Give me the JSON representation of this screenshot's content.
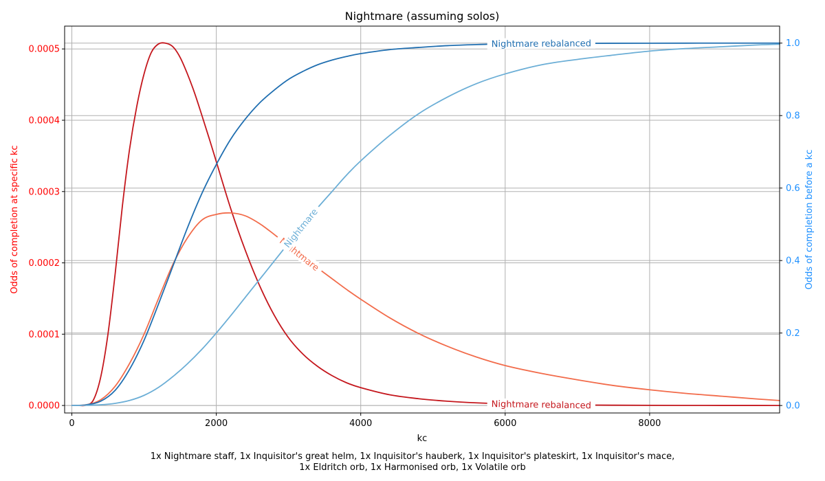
{
  "chart_data": {
    "type": "line",
    "title": "Nightmare (assuming solos)",
    "xlabel": "kc",
    "ylabel_left": "Odds of completion at specific kc",
    "ylabel_right": "Odds of completion before a kc",
    "xlim": [
      -100,
      9800
    ],
    "ylim_left": [
      -1.05e-05,
      0.000532
    ],
    "ylim_right": [
      -0.0206,
      1.0469
    ],
    "x_ticks": [
      0,
      2000,
      4000,
      6000,
      8000
    ],
    "y_ticks_left": [
      0.0,
      0.0001,
      0.0002,
      0.0003,
      0.0004,
      0.0005
    ],
    "y_ticks_left_labels": [
      "0.0000",
      "0.0001",
      "0.0002",
      "0.0003",
      "0.0004",
      "0.0005"
    ],
    "y_ticks_right": [
      0.0,
      0.2,
      0.4,
      0.6,
      0.8,
      1.0
    ],
    "y_ticks_right_labels": [
      "0.0",
      "0.2",
      "0.4",
      "0.6",
      "0.8",
      "1.0"
    ],
    "grid": true,
    "colors": {
      "left_axis": "#ff0000",
      "right_axis": "#1e90ff",
      "nightmare_rebalanced": "#c4161c",
      "nightmare": "#f26b4a",
      "cdf_rebalanced": "#1f6eb0",
      "cdf_nightmare": "#6baed6",
      "grid": "#b0b0b0"
    },
    "series": [
      {
        "name": "Nightmare rebalanced",
        "axis": "left",
        "color": "#c4161c",
        "x": [
          0,
          100,
          200,
          300,
          400,
          500,
          600,
          700,
          800,
          900,
          1000,
          1100,
          1200,
          1300,
          1400,
          1500,
          1600,
          1700,
          1800,
          1900,
          2000,
          2200,
          2400,
          2600,
          2800,
          3000,
          3200,
          3400,
          3600,
          3800,
          4000,
          4400,
          4800,
          5200,
          5600,
          6000,
          6500,
          7000,
          7500,
          8000,
          8500,
          9000,
          9500,
          9800
        ],
        "y": [
          0,
          0,
          5e-07,
          8e-06,
          4e-05,
          0.0001,
          0.000185,
          0.00028,
          0.00036,
          0.00042,
          0.000465,
          0.000495,
          0.000507,
          0.000508,
          0.000503,
          0.000488,
          0.000465,
          0.000438,
          0.000407,
          0.000375,
          0.000342,
          0.000276,
          0.000218,
          0.000168,
          0.000127,
          9.5e-05,
          7.2e-05,
          5.5e-05,
          4.2e-05,
          3.2e-05,
          2.5e-05,
          1.5e-05,
          9.5e-06,
          6e-06,
          3.7e-06,
          2.3e-06,
          1.3e-06,
          7e-07,
          4e-07,
          2e-07,
          1e-07,
          5e-08,
          2e-08,
          1e-08
        ]
      },
      {
        "name": "Nightmare",
        "axis": "left",
        "color": "#f26b4a",
        "x": [
          0,
          200,
          400,
          600,
          800,
          1000,
          1200,
          1400,
          1600,
          1800,
          2000,
          2200,
          2400,
          2600,
          2800,
          3000,
          3200,
          3400,
          3600,
          3800,
          4000,
          4400,
          4800,
          5200,
          5600,
          6000,
          6500,
          7000,
          7500,
          8000,
          8500,
          9000,
          9500,
          9800
        ],
        "y": [
          0,
          1e-06,
          8e-06,
          2.7e-05,
          5.9e-05,
          0.0001,
          0.00015,
          0.000198,
          0.000235,
          0.00026,
          0.000268,
          0.00027,
          0.000266,
          0.000255,
          0.00024,
          0.000224,
          0.000208,
          0.000193,
          0.000178,
          0.000163,
          0.000149,
          0.000123,
          0.000101,
          8.3e-05,
          6.8e-05,
          5.6e-05,
          4.5e-05,
          3.6e-05,
          2.8e-05,
          2.2e-05,
          1.7e-05,
          1.3e-05,
          9e-06,
          7e-06
        ]
      },
      {
        "name": "Nightmare rebalanced",
        "axis": "right",
        "color": "#1f6eb0",
        "x": [
          0,
          200,
          400,
          600,
          800,
          1000,
          1200,
          1400,
          1600,
          1800,
          2000,
          2200,
          2400,
          2600,
          2800,
          3000,
          3200,
          3400,
          3600,
          3800,
          4000,
          4400,
          4800,
          5200,
          5600,
          6000,
          6500,
          7000,
          7500,
          8000,
          8500,
          9000,
          9500,
          9800
        ],
        "y": [
          0,
          0.002,
          0.012,
          0.042,
          0.1,
          0.18,
          0.28,
          0.385,
          0.49,
          0.585,
          0.665,
          0.735,
          0.79,
          0.835,
          0.87,
          0.9,
          0.922,
          0.94,
          0.953,
          0.963,
          0.971,
          0.982,
          0.988,
          0.993,
          0.996,
          0.998,
          0.999,
          0.9993,
          0.9996,
          0.9998,
          0.9999,
          1.0,
          1.0,
          1.0
        ]
      },
      {
        "name": "Nightmare",
        "axis": "right",
        "color": "#6baed6",
        "x": [
          0,
          200,
          400,
          600,
          800,
          1000,
          1200,
          1400,
          1600,
          1800,
          2000,
          2200,
          2400,
          2600,
          2800,
          3000,
          3200,
          3400,
          3600,
          3800,
          4000,
          4400,
          4800,
          5200,
          5600,
          6000,
          6500,
          7000,
          7500,
          8000,
          8500,
          9000,
          9500,
          9800
        ],
        "y": [
          0,
          0.0005,
          0.002,
          0.006,
          0.014,
          0.028,
          0.05,
          0.08,
          0.115,
          0.155,
          0.2,
          0.248,
          0.298,
          0.348,
          0.398,
          0.448,
          0.497,
          0.545,
          0.59,
          0.635,
          0.675,
          0.745,
          0.805,
          0.851,
          0.888,
          0.915,
          0.94,
          0.955,
          0.967,
          0.978,
          0.985,
          0.99,
          0.995,
          0.997
        ]
      }
    ],
    "inline_labels": [
      {
        "text": "Nightmare rebalanced",
        "series_index": 0,
        "x": 6500,
        "color": "#c4161c"
      },
      {
        "text": "Nightmare",
        "series_index": 1,
        "x": 3150,
        "color": "#f26b4a"
      },
      {
        "text": "Nightmare rebalanced",
        "series_index": 2,
        "x": 6500,
        "color": "#1f6eb0"
      },
      {
        "text": "Nightmare",
        "series_index": 3,
        "x": 3170,
        "color": "#6baed6"
      }
    ]
  },
  "caption": {
    "line1": "1x Nightmare staff, 1x Inquisitor's great helm, 1x Inquisitor's hauberk, 1x Inquisitor's plateskirt, 1x Inquisitor's mace,",
    "line2": "1x Eldritch orb, 1x Harmonised orb, 1x Volatile orb"
  }
}
